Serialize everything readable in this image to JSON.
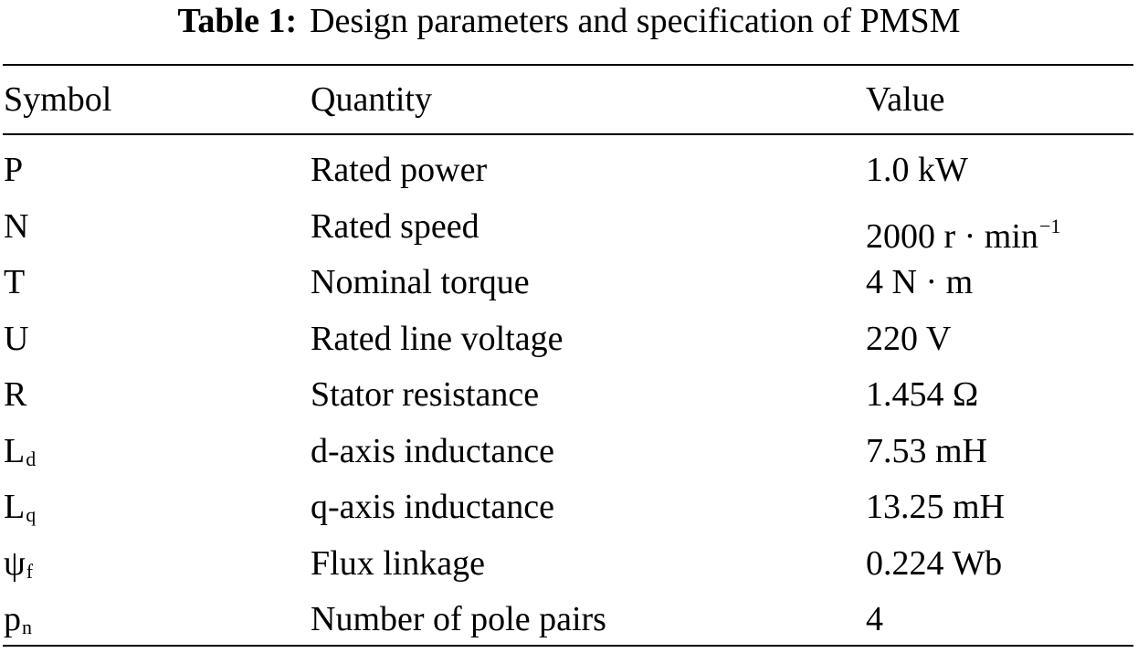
{
  "caption": {
    "label": "Table 1:",
    "text": "Design parameters and specification of PMSM"
  },
  "table": {
    "headers": {
      "symbol": "Symbol",
      "quantity": "Quantity",
      "value": "Value"
    },
    "rows": [
      {
        "symbol": "P",
        "symbol_sub": "",
        "quantity": "Rated power",
        "value": "1.0 kW",
        "value_sup": ""
      },
      {
        "symbol": "N",
        "symbol_sub": "",
        "quantity": "Rated speed",
        "value": "2000 r · min",
        "value_sup": "−1"
      },
      {
        "symbol": "T",
        "symbol_sub": "",
        "quantity": "Nominal torque",
        "value": "4 N · m",
        "value_sup": ""
      },
      {
        "symbol": "U",
        "symbol_sub": "",
        "quantity": "Rated line voltage",
        "value": "220 V",
        "value_sup": ""
      },
      {
        "symbol": "R",
        "symbol_sub": "",
        "quantity": "Stator resistance",
        "value": "1.454 Ω",
        "value_sup": ""
      },
      {
        "symbol": "L",
        "symbol_sub": "d",
        "quantity": "d-axis inductance",
        "value": "7.53 mH",
        "value_sup": ""
      },
      {
        "symbol": "L",
        "symbol_sub": "q",
        "quantity": "q-axis inductance",
        "value": "13.25 mH",
        "value_sup": ""
      },
      {
        "symbol": "ψ",
        "symbol_sub": "f",
        "quantity": "Flux linkage",
        "value": "0.224 Wb",
        "value_sup": ""
      },
      {
        "symbol": "p",
        "symbol_sub": "n",
        "quantity": "Number of pole pairs",
        "value": "4",
        "value_sup": ""
      }
    ]
  }
}
